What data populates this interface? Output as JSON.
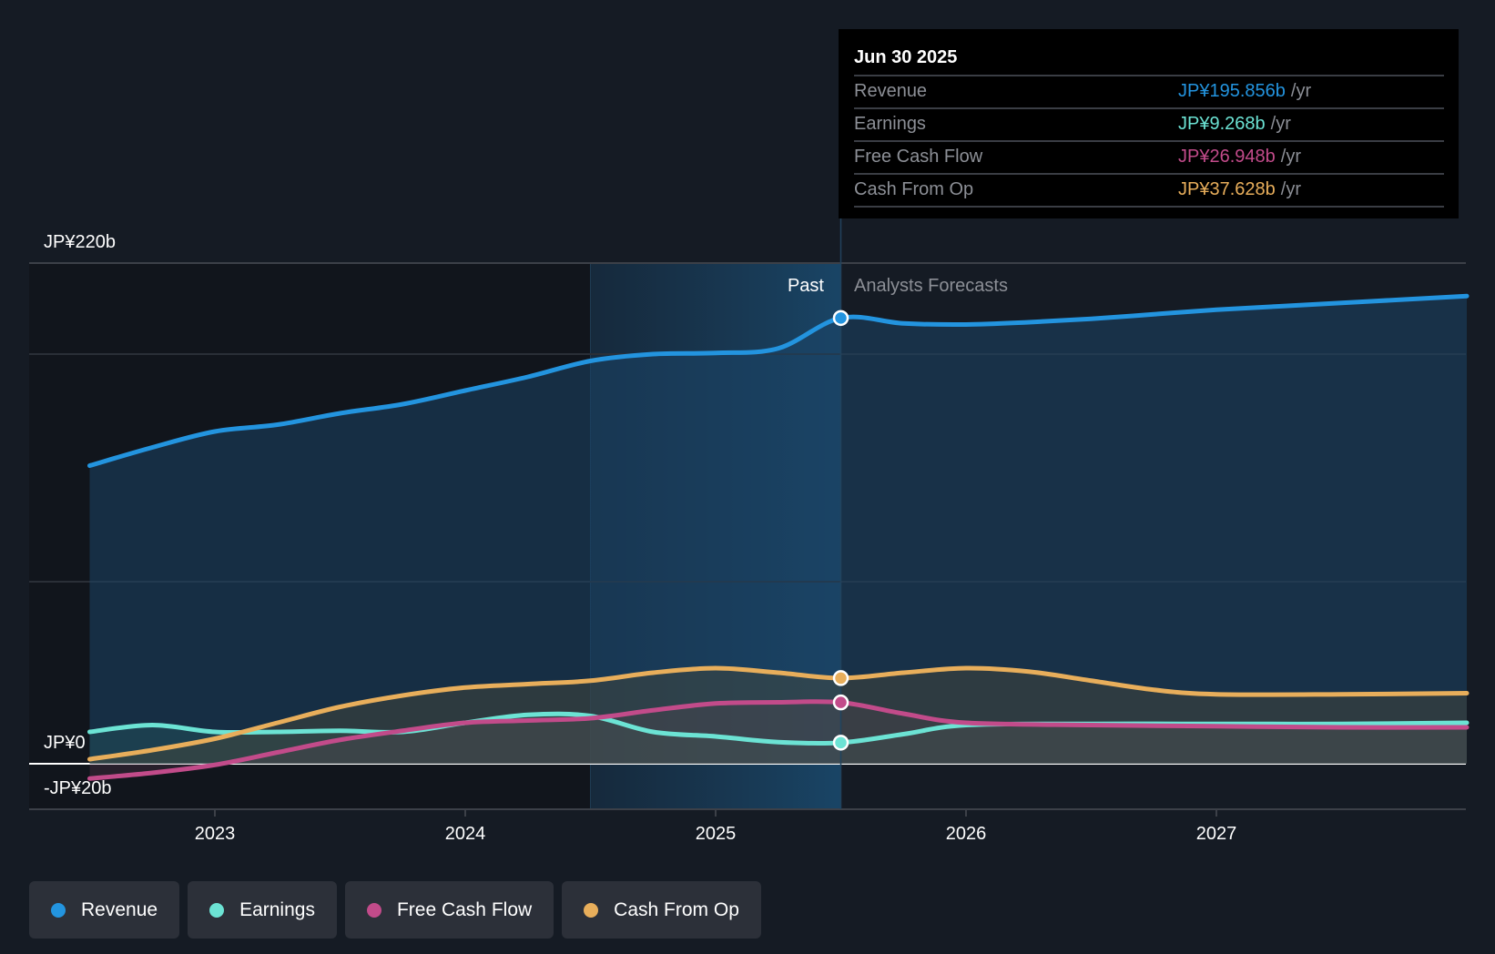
{
  "chart_data": {
    "type": "line",
    "title": "",
    "xlabel": "",
    "ylabel": "",
    "y_unit": "JP¥ billions",
    "ylim": [
      -20,
      220
    ],
    "y_tick_labels": [
      {
        "value": 220,
        "label": "JP¥220b"
      },
      {
        "value": 0,
        "label": "JP¥0"
      },
      {
        "value": -20,
        "label": "-JP¥20b"
      }
    ],
    "gridlines_at": [
      220,
      180,
      80,
      0,
      -20
    ],
    "xlim": [
      2022.45,
      2028.0
    ],
    "x_ticks": [
      {
        "value": 2023,
        "label": "2023"
      },
      {
        "value": 2024,
        "label": "2024"
      },
      {
        "value": 2025,
        "label": "2025"
      },
      {
        "value": 2026,
        "label": "2026"
      },
      {
        "value": 2027,
        "label": "2027"
      }
    ],
    "past_region_start": 2024.5,
    "divider_x": 2025.5,
    "past_label": "Past",
    "forecast_label": "Analysts Forecasts",
    "legend_position": "bottom-left",
    "series": [
      {
        "name": "Revenue",
        "color": "#2394df",
        "points": [
          [
            2022.5,
            131
          ],
          [
            2022.75,
            139
          ],
          [
            2023.0,
            146
          ],
          [
            2023.25,
            149
          ],
          [
            2023.5,
            154
          ],
          [
            2023.75,
            158
          ],
          [
            2024.0,
            164
          ],
          [
            2024.25,
            170
          ],
          [
            2024.5,
            177
          ],
          [
            2024.75,
            180
          ],
          [
            2025.0,
            180.5
          ],
          [
            2025.25,
            182.5
          ],
          [
            2025.5,
            195.856
          ],
          [
            2025.75,
            193.5
          ],
          [
            2026.0,
            193
          ],
          [
            2026.25,
            194
          ],
          [
            2026.5,
            195.5
          ],
          [
            2026.75,
            197.5
          ],
          [
            2027.0,
            199.5
          ],
          [
            2027.25,
            201
          ],
          [
            2027.5,
            202.5
          ],
          [
            2027.75,
            204
          ],
          [
            2028.0,
            205.5
          ]
        ]
      },
      {
        "name": "Earnings",
        "color": "#6ce3d4",
        "points": [
          [
            2022.5,
            14
          ],
          [
            2022.75,
            17
          ],
          [
            2023.0,
            14
          ],
          [
            2023.25,
            14
          ],
          [
            2023.5,
            14.5
          ],
          [
            2023.75,
            14
          ],
          [
            2024.0,
            18
          ],
          [
            2024.25,
            21.5
          ],
          [
            2024.5,
            21
          ],
          [
            2024.75,
            14
          ],
          [
            2025.0,
            12
          ],
          [
            2025.25,
            9.5
          ],
          [
            2025.5,
            9.268
          ],
          [
            2025.75,
            13
          ],
          [
            2026.0,
            17
          ],
          [
            2026.5,
            17.5
          ],
          [
            2027.0,
            17.5
          ],
          [
            2027.5,
            17.5
          ],
          [
            2028.0,
            18
          ]
        ]
      },
      {
        "name": "Free Cash Flow",
        "color": "#c24b8a",
        "points": [
          [
            2022.5,
            -6.5
          ],
          [
            2022.75,
            -4
          ],
          [
            2023.0,
            -0.5
          ],
          [
            2023.25,
            5
          ],
          [
            2023.5,
            10.5
          ],
          [
            2023.75,
            14.5
          ],
          [
            2024.0,
            18
          ],
          [
            2024.25,
            19
          ],
          [
            2024.5,
            20
          ],
          [
            2024.75,
            23.5
          ],
          [
            2025.0,
            26.5
          ],
          [
            2025.25,
            27
          ],
          [
            2025.5,
            26.948
          ],
          [
            2025.75,
            22
          ],
          [
            2026.0,
            18
          ],
          [
            2026.5,
            17
          ],
          [
            2027.0,
            16.5
          ],
          [
            2027.5,
            16
          ],
          [
            2028.0,
            16
          ]
        ]
      },
      {
        "name": "Cash From Op",
        "color": "#e8ae5b",
        "points": [
          [
            2022.5,
            2
          ],
          [
            2022.75,
            6
          ],
          [
            2023.0,
            11
          ],
          [
            2023.25,
            18
          ],
          [
            2023.5,
            25
          ],
          [
            2023.75,
            30
          ],
          [
            2024.0,
            33.5
          ],
          [
            2024.25,
            35
          ],
          [
            2024.5,
            36.5
          ],
          [
            2024.75,
            40
          ],
          [
            2025.0,
            42
          ],
          [
            2025.25,
            40
          ],
          [
            2025.5,
            37.628
          ],
          [
            2025.75,
            40
          ],
          [
            2026.0,
            42
          ],
          [
            2026.25,
            40.5
          ],
          [
            2026.5,
            36.5
          ],
          [
            2026.75,
            32.5
          ],
          [
            2027.0,
            30.5
          ],
          [
            2027.5,
            30.5
          ],
          [
            2028.0,
            31
          ]
        ]
      }
    ]
  },
  "tooltip": {
    "date": "Jun 30 2025",
    "unit_suffix": "/yr",
    "rows": [
      {
        "name": "Revenue",
        "value": "JP¥195.856b",
        "color": "#2394df"
      },
      {
        "name": "Earnings",
        "value": "JP¥9.268b",
        "color": "#6ce3d4"
      },
      {
        "name": "Free Cash Flow",
        "value": "JP¥26.948b",
        "color": "#c24b8a"
      },
      {
        "name": "Cash From Op",
        "value": "JP¥37.628b",
        "color": "#e8ae5b"
      }
    ]
  },
  "legend": [
    {
      "label": "Revenue",
      "color": "#2394df",
      "icon": "dot-icon"
    },
    {
      "label": "Earnings",
      "color": "#6ce3d4",
      "icon": "dot-icon"
    },
    {
      "label": "Free Cash Flow",
      "color": "#c24b8a",
      "icon": "dot-icon"
    },
    {
      "label": "Cash From Op",
      "color": "#e8ae5b",
      "icon": "dot-icon"
    }
  ]
}
